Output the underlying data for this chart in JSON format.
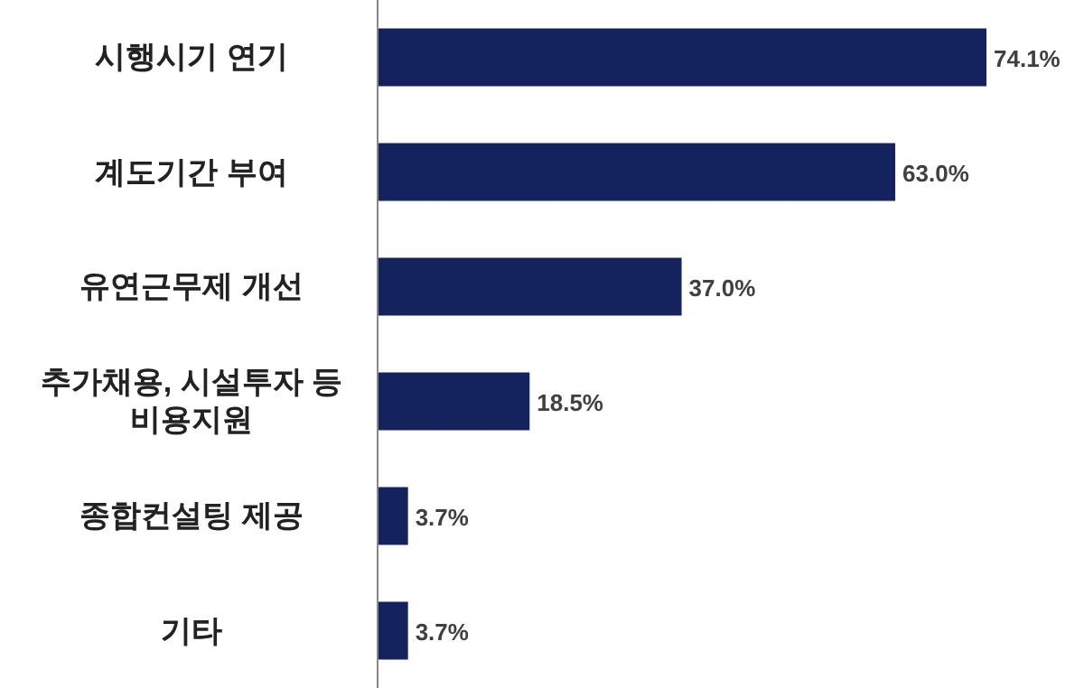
{
  "chart_data": {
    "type": "bar",
    "orientation": "horizontal",
    "categories": [
      "시행시기 연기",
      "계도기간 부여",
      "유연근무제 개선",
      "추가채용, 시설투자 등 비용지원",
      "종합컨설팅 제공",
      "기타"
    ],
    "values": [
      74.1,
      63.0,
      37.0,
      18.5,
      3.7,
      3.7
    ],
    "value_labels": [
      "74.1%",
      "63.0%",
      "37.0%",
      "18.5%",
      "3.7%",
      "3.7%"
    ],
    "color": "#14225e",
    "relative": false
  }
}
